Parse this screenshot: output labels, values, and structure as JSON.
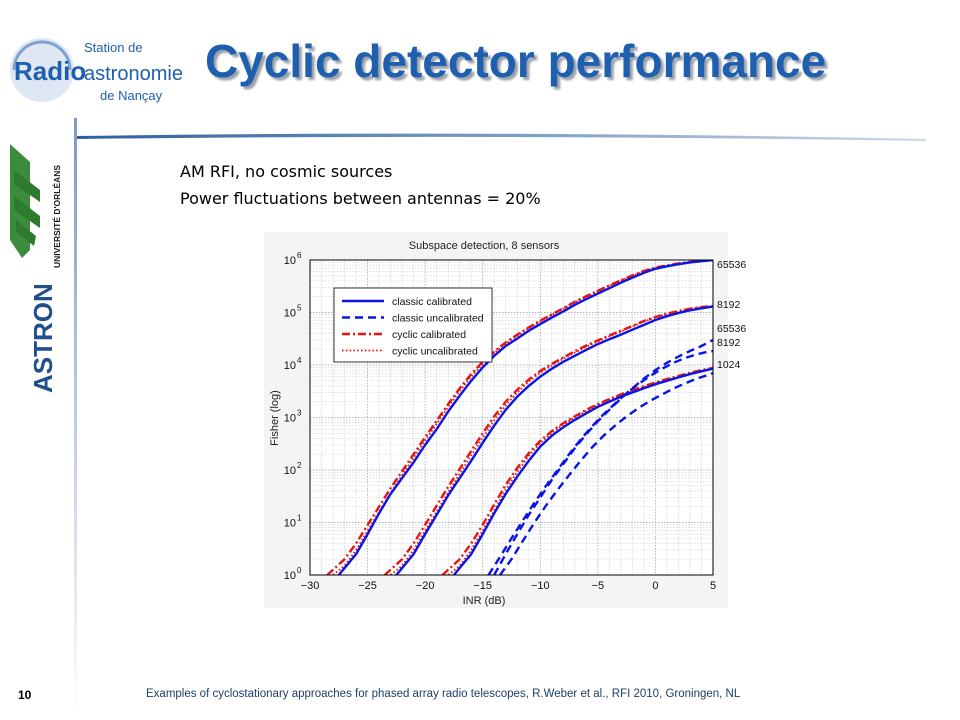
{
  "logos": {
    "station": {
      "line1": "Station de",
      "line2": "Radio",
      "line3": "astronomie",
      "line4": "de Nançay"
    },
    "university": "UNIVERSITÉ D'ORLÉANS",
    "astron": "ASTRON"
  },
  "slide": {
    "title": "Cyclic detector performance",
    "subtitle1": "AM RFI, no cosmic sources",
    "subtitle2": "Power fluctuations between antennas = 20%",
    "page_number": "10",
    "footer": "Examples of cyclostationary approaches for phased array radio telescopes, R.Weber et al., RFI 2010, Groningen, NL"
  },
  "colors": {
    "title": "#1f5fb0",
    "classic": "#0a14e6",
    "cyclic": "#e61414"
  },
  "chart_data": {
    "type": "line",
    "title": "Subspace detection, 8 sensors",
    "xlabel": "INR (dB)",
    "ylabel": "Fisher (log)",
    "xlim": [
      -30,
      5
    ],
    "ylim": [
      1,
      1000000
    ],
    "yscale": "log",
    "grid": true,
    "legend_position": "top-left",
    "x_ticks": [
      -30,
      -25,
      -20,
      -15,
      -10,
      -5,
      0,
      5
    ],
    "y_tick_bases": [
      "10",
      "10",
      "10",
      "10",
      "10",
      "10",
      "10"
    ],
    "y_tick_exps": [
      "0",
      "1",
      "2",
      "3",
      "4",
      "5",
      "6"
    ],
    "legend": [
      "classic calibrated",
      "classic uncalibrated",
      "cyclic calibrated",
      "cyclic uncalibrated"
    ],
    "annotations": [
      {
        "text": "65536",
        "x": 5,
        "y": 900000
      },
      {
        "text": "8192",
        "x": 5,
        "y": 130000
      },
      {
        "text": "65536",
        "x": 5,
        "y": 30000
      },
      {
        "text": "8192",
        "x": 5,
        "y": 18000
      },
      {
        "text": "1024",
        "x": 5,
        "y": 8000
      }
    ],
    "series": [
      {
        "name": "classic calibrated",
        "style": "solid",
        "color": "#0a14e6",
        "n": "65536",
        "x": [
          -27.5,
          -26,
          -25,
          -24,
          -23,
          -22,
          -21,
          -20,
          -19,
          -18,
          -17,
          -16,
          -15,
          -14,
          -13,
          -12,
          -11,
          -10,
          -9,
          -8,
          -7,
          -6,
          -5,
          -4,
          -3,
          -2,
          -1,
          0,
          1,
          2,
          3,
          4,
          5
        ],
        "y": [
          1,
          2.5,
          6,
          15,
          35,
          70,
          140,
          300,
          600,
          1300,
          2600,
          5000,
          9000,
          15000,
          23000,
          32000,
          45000,
          60000,
          80000,
          105000,
          140000,
          180000,
          230000,
          290000,
          370000,
          460000,
          570000,
          680000,
          760000,
          830000,
          900000,
          950000,
          1000000
        ]
      },
      {
        "name": "cyclic calibrated",
        "style": "dashdot",
        "color": "#e61414",
        "n": "65536",
        "x": [
          -28.5,
          -27,
          -26,
          -25,
          -24,
          -23,
          -22,
          -21,
          -20,
          -19,
          -18,
          -17,
          -16,
          -15,
          -14,
          -13,
          -12,
          -11,
          -10,
          -9,
          -8,
          -7,
          -6,
          -5,
          -4,
          -3,
          -2,
          -1,
          0,
          1,
          2,
          3,
          4,
          5
        ],
        "y": [
          1,
          2,
          4,
          9,
          20,
          45,
          95,
          200,
          420,
          870,
          1800,
          3600,
          6700,
          11500,
          18000,
          27000,
          38000,
          52000,
          70000,
          92000,
          120000,
          160000,
          205000,
          260000,
          330000,
          410000,
          510000,
          620000,
          720000,
          790000,
          860000,
          920000,
          970000,
          1000000
        ]
      },
      {
        "name": "cyclic uncalibrated",
        "style": "dotted",
        "color": "#e61414",
        "n": "65536",
        "x": [
          -28,
          -27,
          -26,
          -25,
          -24,
          -23,
          -22,
          -21,
          -20,
          -19,
          -18,
          -17,
          -16,
          -15,
          -14,
          -13,
          -12,
          -11,
          -10,
          -9,
          -8,
          -7,
          -6,
          -5,
          -4,
          -3,
          -2,
          -1,
          0,
          1,
          2,
          3,
          4,
          5
        ],
        "y": [
          1,
          1.5,
          3,
          7,
          16,
          36,
          80,
          170,
          360,
          760,
          1600,
          3200,
          6000,
          10500,
          17000,
          25500,
          36000,
          50000,
          68000,
          90000,
          118000,
          155000,
          200000,
          255000,
          325000,
          405000,
          500000,
          610000,
          710000,
          780000,
          850000,
          910000,
          960000,
          990000
        ]
      },
      {
        "name": "classic calibrated",
        "style": "solid",
        "color": "#0a14e6",
        "n": "8192",
        "x": [
          -22.5,
          -21,
          -20,
          -19,
          -18,
          -17,
          -16,
          -15,
          -14,
          -13,
          -12,
          -11,
          -10,
          -9,
          -8,
          -7,
          -6,
          -5,
          -4,
          -3,
          -2,
          -1,
          0,
          1,
          2,
          3,
          4,
          5
        ],
        "y": [
          1,
          2.5,
          6,
          14,
          33,
          70,
          150,
          330,
          700,
          1400,
          2500,
          4000,
          6000,
          8500,
          11500,
          15000,
          19500,
          25000,
          31000,
          38000,
          47000,
          58000,
          72000,
          85000,
          98000,
          110000,
          120000,
          130000
        ]
      },
      {
        "name": "cyclic calibrated",
        "style": "dashdot",
        "color": "#e61414",
        "n": "8192",
        "x": [
          -23.5,
          -22,
          -21,
          -20,
          -19,
          -18,
          -17,
          -16,
          -15,
          -14,
          -13,
          -12,
          -11,
          -10,
          -9,
          -8,
          -7,
          -6,
          -5,
          -4,
          -3,
          -2,
          -1,
          0,
          1,
          2,
          3,
          4,
          5
        ],
        "y": [
          1,
          2,
          4,
          9,
          21,
          48,
          105,
          230,
          500,
          1050,
          2000,
          3400,
          5300,
          7700,
          10500,
          14000,
          18200,
          23500,
          29500,
          36500,
          45000,
          55500,
          69000,
          82000,
          95000,
          107000,
          118000,
          128000,
          132000
        ]
      },
      {
        "name": "cyclic uncalibrated",
        "style": "dotted",
        "color": "#e61414",
        "n": "8192",
        "x": [
          -23,
          -22,
          -21,
          -20,
          -19,
          -18,
          -17,
          -16,
          -15,
          -14,
          -13,
          -12,
          -11,
          -10,
          -9,
          -8,
          -7,
          -6,
          -5,
          -4,
          -3,
          -2,
          -1,
          0,
          1,
          2,
          3,
          4,
          5
        ],
        "y": [
          1,
          1.5,
          3,
          7,
          16,
          38,
          85,
          190,
          410,
          880,
          1700,
          3000,
          4800,
          7100,
          9800,
          13200,
          17200,
          22300,
          28200,
          35000,
          43500,
          54000,
          67000,
          80000,
          93000,
          105000,
          116000,
          126000,
          130000
        ]
      },
      {
        "name": "classic calibrated",
        "style": "solid",
        "color": "#0a14e6",
        "n": "1024",
        "x": [
          -17.5,
          -16,
          -15,
          -14,
          -13,
          -12,
          -11,
          -10,
          -9,
          -8,
          -7,
          -6,
          -5,
          -4,
          -3,
          -2,
          -1,
          0,
          1,
          2,
          3,
          4,
          5
        ],
        "y": [
          1,
          2.5,
          6,
          15,
          35,
          75,
          150,
          280,
          450,
          650,
          900,
          1200,
          1600,
          2000,
          2500,
          3000,
          3600,
          4300,
          5000,
          5800,
          6700,
          7600,
          8500
        ]
      },
      {
        "name": "cyclic calibrated",
        "style": "dashdot",
        "color": "#e61414",
        "n": "1024",
        "x": [
          -18.5,
          -17,
          -16,
          -15,
          -14,
          -13,
          -12,
          -11,
          -10,
          -9,
          -8,
          -7,
          -6,
          -5,
          -4,
          -3,
          -2,
          -1,
          0,
          1,
          2,
          3,
          4,
          5
        ],
        "y": [
          1,
          2,
          4,
          9,
          22,
          52,
          110,
          210,
          360,
          550,
          780,
          1050,
          1400,
          1800,
          2250,
          2750,
          3300,
          3950,
          4650,
          5400,
          6200,
          7100,
          8000,
          8800
        ]
      },
      {
        "name": "cyclic uncalibrated",
        "style": "dotted",
        "color": "#e61414",
        "n": "1024",
        "x": [
          -18,
          -17,
          -16,
          -15,
          -14,
          -13,
          -12,
          -11,
          -10,
          -9,
          -8,
          -7,
          -6,
          -5,
          -4,
          -3,
          -2,
          -1,
          0,
          1,
          2,
          3,
          4,
          5
        ],
        "y": [
          1,
          1.5,
          3,
          7,
          17,
          42,
          92,
          185,
          330,
          510,
          740,
          1000,
          1330,
          1720,
          2150,
          2650,
          3200,
          3800,
          4500,
          5250,
          6050,
          6900,
          7800,
          8600
        ]
      },
      {
        "name": "classic uncalibrated",
        "style": "dashed",
        "color": "#0a14e6",
        "n": "65536",
        "x": [
          -14,
          -13,
          -12,
          -11,
          -10,
          -9,
          -8,
          -7,
          -6,
          -5,
          -4,
          -3,
          -2,
          -1,
          0,
          1,
          2,
          3,
          4,
          5
        ],
        "y": [
          1,
          2.5,
          6,
          14,
          30,
          65,
          130,
          260,
          480,
          850,
          1400,
          2300,
          3600,
          5500,
          8000,
          11000,
          14500,
          18500,
          23000,
          30000
        ]
      },
      {
        "name": "classic uncalibrated",
        "style": "dashed",
        "color": "#0a14e6",
        "n": "8192",
        "x": [
          -14.5,
          -13.5,
          -12.5,
          -11.5,
          -10.5,
          -9.5,
          -8.5,
          -7.5,
          -6.5,
          -5.5,
          -4.5,
          -3.5,
          -2.5,
          -1.5,
          -0.5,
          0.5,
          1.5,
          2.5,
          3.5,
          4.5,
          5
        ],
        "y": [
          1,
          2.2,
          5,
          11,
          24,
          50,
          100,
          200,
          380,
          680,
          1150,
          1850,
          2900,
          4300,
          6100,
          8300,
          10800,
          13400,
          15800,
          17800,
          18500
        ]
      },
      {
        "name": "classic uncalibrated",
        "style": "dashed",
        "color": "#0a14e6",
        "n": "1024",
        "x": [
          -13.5,
          -12.5,
          -11.5,
          -10.5,
          -9.5,
          -8.5,
          -7.5,
          -6.5,
          -5.5,
          -4.5,
          -3.5,
          -2.5,
          -1.5,
          -0.5,
          0.5,
          1.5,
          2.5,
          3.5,
          4.5,
          5
        ],
        "y": [
          1,
          2,
          4.5,
          10,
          21,
          42,
          80,
          150,
          270,
          450,
          700,
          1050,
          1500,
          2050,
          2700,
          3500,
          4400,
          5400,
          6400,
          7000
        ]
      }
    ]
  }
}
